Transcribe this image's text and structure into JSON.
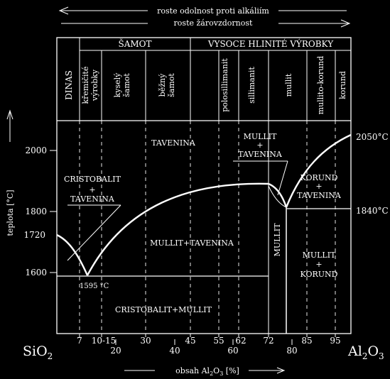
{
  "header": {
    "arrow_left_label": "roste odolnost proti alkáliím",
    "arrow_right_label": "roste žárovzdornost"
  },
  "products": {
    "group_samot": "ŠAMOT",
    "group_hlinite": "VYSOCE HLINITÉ VÝROBKY",
    "dinas": "DINAS",
    "kremicite_1": "křemičité",
    "kremicite_2": "výrobky",
    "kysely_1": "kyselý",
    "kysely_2": "šamot",
    "bezny_1": "běžný",
    "bezny_2": "šamot",
    "polosillimanit": "polosillimanit",
    "sillimanit": "sillimanit",
    "mullit": "mullit",
    "mullito_korund": "mullito-korund",
    "korund": "korund"
  },
  "phases": {
    "tavenina": "TAVENINA",
    "cristobalit_1": "CRISTOBALIT",
    "cristobalit_2": "+",
    "cristobalit_3": "TAVENINA",
    "mullit_tav_top_1": "MULLIT",
    "mullit_tav_top_2": "+",
    "mullit_tav_top_3": "TAVENINA",
    "korund_1": "KORUND",
    "korund_2": "+",
    "korund_3": "TAVENINA",
    "mullit_tavenina": "MULLIT+TAVENINA",
    "mullit_vertical": "MULLIT",
    "mullit_korund_1": "MULLIT",
    "mullit_korund_2": "+",
    "mullit_korund_3": "KORUND",
    "cristobalit_mullit": "CRISTOBALIT+MULLIT"
  },
  "temperature": {
    "axis_label": "teplota [°C]",
    "ticks": [
      "2000",
      "1800",
      "1600"
    ],
    "t1720": "1720",
    "eutectic_label": "1595 °C",
    "alumina_melt": "2050°C",
    "alumina_eutectic": "1840°C"
  },
  "composition": {
    "left_end": "SiO",
    "left_end_sub": "2",
    "right_end": "Al",
    "right_end_sub1": "2",
    "right_end_mid": "O",
    "right_end_sub2": "3",
    "axis_label_pre": "obsah Al",
    "axis_label_sub1": "2",
    "axis_label_mid": "O",
    "axis_label_sub2": "3",
    "axis_label_post": " [%]",
    "product_ticks": [
      "7",
      "10-15",
      "30",
      "45",
      "55",
      "62",
      "72",
      "85",
      "95"
    ],
    "scale_ticks": [
      "20",
      "40",
      "60",
      "80"
    ]
  },
  "chart_data": {
    "type": "phase-diagram",
    "x_range": [
      0,
      100
    ],
    "y_range_approx": [
      1400,
      2150
    ],
    "x_unit": "% Al2O3",
    "y_unit": "°C",
    "key_points": [
      {
        "x": 0,
        "y": 1720
      },
      {
        "x": 5.5,
        "y": 1595
      },
      {
        "x": 72,
        "y": 1850
      },
      {
        "x": 78,
        "y": 1840
      },
      {
        "x": 100,
        "y": 2050
      }
    ],
    "isotherms": [
      1595,
      1840
    ]
  }
}
